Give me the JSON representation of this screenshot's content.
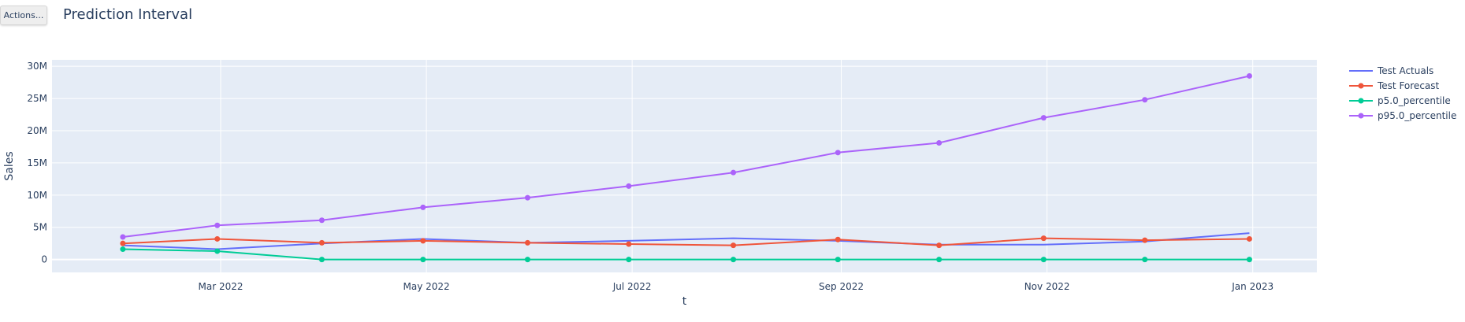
{
  "toolbar": {
    "actions_label": "Actions..."
  },
  "chart_data": {
    "type": "line",
    "title": "Prediction Interval",
    "xlabel": "t",
    "ylabel": "Sales",
    "x": [
      "2022-01-31",
      "2022-02-28",
      "2022-03-31",
      "2022-04-30",
      "2022-05-31",
      "2022-06-30",
      "2022-07-31",
      "2022-08-31",
      "2022-09-30",
      "2022-10-31",
      "2022-11-30",
      "2022-12-31"
    ],
    "xlim": [
      "2022-01-10",
      "2023-01-20"
    ],
    "xticks": [
      {
        "value": "2022-03-01",
        "label": "Mar 2022"
      },
      {
        "value": "2022-05-01",
        "label": "May 2022"
      },
      {
        "value": "2022-07-01",
        "label": "Jul 2022"
      },
      {
        "value": "2022-09-01",
        "label": "Sep 2022"
      },
      {
        "value": "2022-11-01",
        "label": "Nov 2022"
      },
      {
        "value": "2023-01-01",
        "label": "Jan 2023"
      }
    ],
    "ylim": [
      -2000000,
      31000000
    ],
    "yticks": [
      {
        "value": 0,
        "label": "0"
      },
      {
        "value": 5000000,
        "label": "5M"
      },
      {
        "value": 10000000,
        "label": "10M"
      },
      {
        "value": 15000000,
        "label": "15M"
      },
      {
        "value": 20000000,
        "label": "20M"
      },
      {
        "value": 25000000,
        "label": "25M"
      },
      {
        "value": 30000000,
        "label": "30M"
      }
    ],
    "grid": true,
    "legend_position": "top-right",
    "series": [
      {
        "name": "Test Actuals",
        "color": "#636efa",
        "markers": false,
        "values": [
          2200000,
          1600000,
          2500000,
          3200000,
          2600000,
          2900000,
          3300000,
          2900000,
          2300000,
          2300000,
          2800000,
          4100000
        ]
      },
      {
        "name": "Test Forecast",
        "color": "#ef553b",
        "markers": true,
        "values": [
          2500000,
          3200000,
          2600000,
          2900000,
          2600000,
          2400000,
          2200000,
          3100000,
          2200000,
          3300000,
          3000000,
          3200000
        ]
      },
      {
        "name": "p5.0_percentile",
        "color": "#00cc96",
        "markers": true,
        "values": [
          1600000,
          1300000,
          0,
          0,
          0,
          0,
          0,
          0,
          0,
          0,
          0,
          0
        ]
      },
      {
        "name": "p95.0_percentile",
        "color": "#ab63fa",
        "markers": true,
        "values": [
          3500000,
          5300000,
          6100000,
          8100000,
          9600000,
          11400000,
          13500000,
          16600000,
          18100000,
          22000000,
          24800000,
          28500000
        ]
      }
    ]
  }
}
